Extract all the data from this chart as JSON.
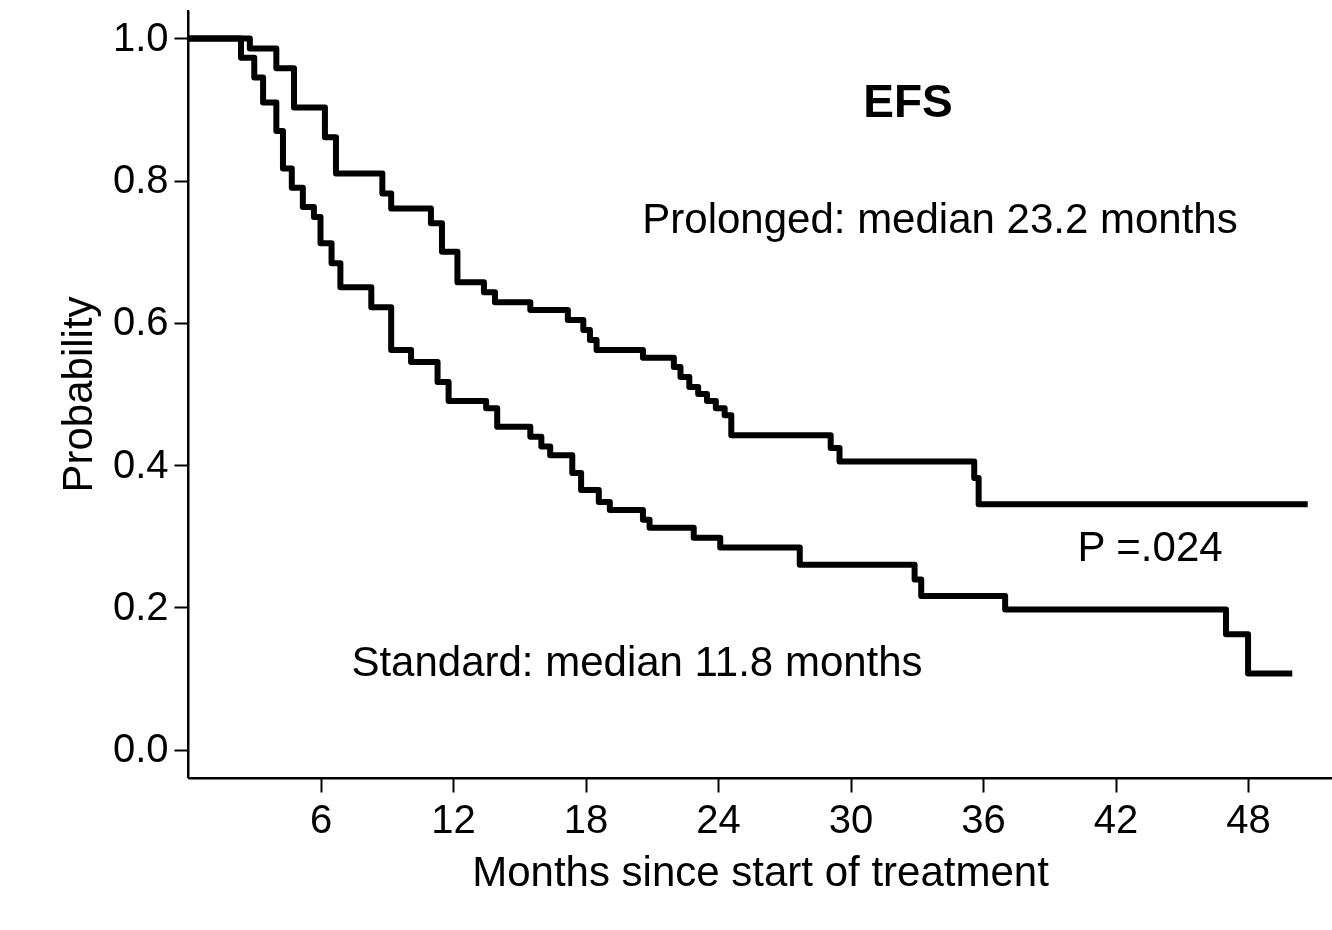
{
  "chart_data": {
    "type": "step",
    "title": "EFS",
    "xlabel": "Months since start of treatment",
    "ylabel": "Probability",
    "xlim": [
      0,
      51.8
    ],
    "ylim": [
      -0.04,
      1.04
    ],
    "xticks": [
      6,
      12,
      18,
      24,
      30,
      36,
      42,
      48
    ],
    "yticks": [
      {
        "value": 0,
        "label": "0.0"
      },
      0.2,
      0.4,
      0.6,
      0.8,
      {
        "value": 1,
        "label": "1.0"
      }
    ],
    "grid": false,
    "marker": "none",
    "line_style": "solid",
    "annotations": [
      "Prolonged: median 23.2 months",
      "P =.024",
      "Standard: median 11.8 months"
    ],
    "series": [
      {
        "color": "#000000",
        "x": [
          0,
          2.8,
          4.0,
          4.8,
          6.2,
          6.7,
          8.8,
          9.2,
          11.0,
          11.5,
          12.2,
          13.4,
          13.9,
          15.5,
          17.2,
          17.9,
          18.2,
          18.5,
          20.6,
          22.0,
          22.3,
          22.7,
          23.1,
          23.5,
          23.9,
          24.3,
          24.6,
          29.1,
          29.5,
          35.6,
          35.8,
          50.7
        ],
        "values": [
          1.0,
          0.986,
          0.958,
          0.903,
          0.861,
          0.81,
          0.782,
          0.761,
          0.74,
          0.7,
          0.657,
          0.643,
          0.629,
          0.618,
          0.604,
          0.59,
          0.576,
          0.562,
          0.551,
          0.538,
          0.524,
          0.51,
          0.5,
          0.49,
          0.48,
          0.47,
          0.442,
          0.424,
          0.405,
          0.382,
          0.345,
          0.345
        ]
      },
      {
        "color": "#000000",
        "x": [
          0,
          2.4,
          3.0,
          3.4,
          4.0,
          4.3,
          4.7,
          5.2,
          5.7,
          6.0,
          6.5,
          6.9,
          8.3,
          9.2,
          10.1,
          11.3,
          11.8,
          13.5,
          14.0,
          15.5,
          16.0,
          16.4,
          17.4,
          17.8,
          18.6,
          19.1,
          20.6,
          20.9,
          22.9,
          24.1,
          27.7,
          32.9,
          33.2,
          37.0,
          47.0,
          48.0,
          50.0
        ],
        "values": [
          1.0,
          0.973,
          0.945,
          0.91,
          0.87,
          0.817,
          0.79,
          0.763,
          0.749,
          0.712,
          0.684,
          0.65,
          0.622,
          0.562,
          0.545,
          0.517,
          0.49,
          0.48,
          0.454,
          0.44,
          0.426,
          0.414,
          0.389,
          0.365,
          0.348,
          0.337,
          0.323,
          0.312,
          0.298,
          0.284,
          0.26,
          0.239,
          0.216,
          0.197,
          0.162,
          0.107,
          0.107
        ]
      }
    ]
  }
}
